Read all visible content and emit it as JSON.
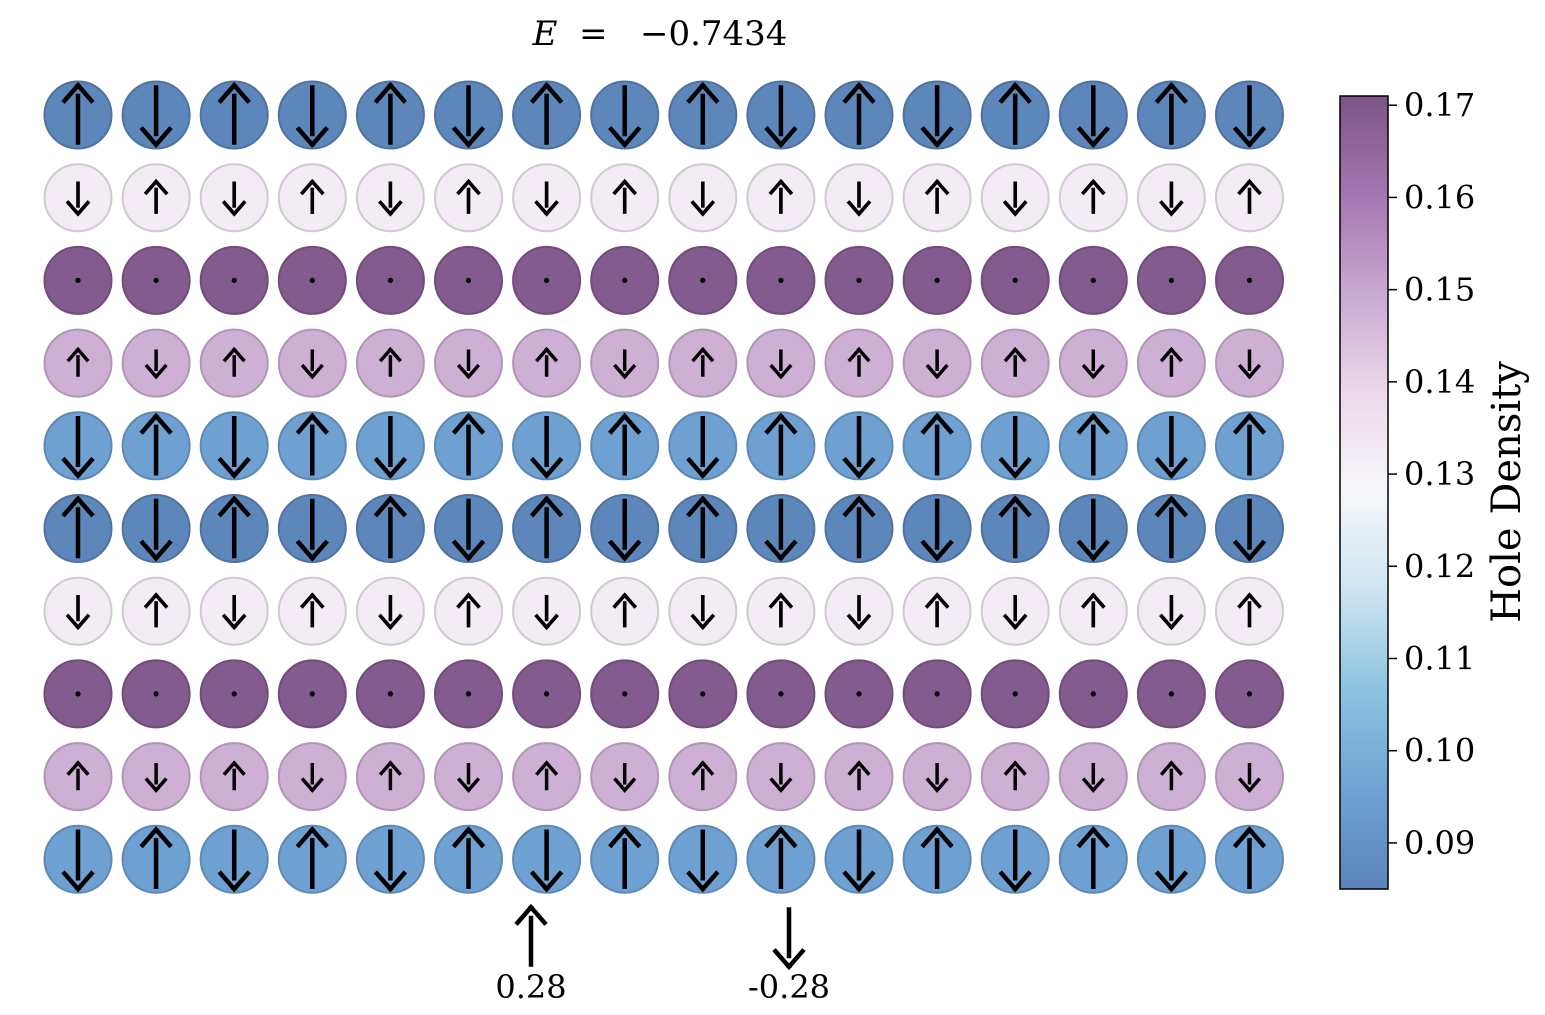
{
  "chart_data": {
    "type": "heatmap",
    "title": "E = −0.7434",
    "title_parts": {
      "symbol": "E",
      "equals": " =  ",
      "value": "−0.7434"
    },
    "grid": false,
    "rows": 10,
    "cols": 16,
    "colorbar": {
      "label": "Hole Density",
      "ticks": [
        "0.09",
        "0.10",
        "0.11",
        "0.12",
        "0.13",
        "0.14",
        "0.15",
        "0.16",
        "0.17"
      ],
      "tick_values": [
        0.09,
        0.1,
        0.11,
        0.12,
        0.13,
        0.14,
        0.15,
        0.16,
        0.17
      ],
      "range": [
        0.085,
        0.171
      ],
      "colormap": [
        "#5b84b8",
        "#6fa3d4",
        "#8bc3e0",
        "#cde4f0",
        "#f7f7fb",
        "#ecd9ea",
        "#c9a9d1",
        "#a576b1",
        "#7d5587"
      ]
    },
    "row_hole_density": [
      0.086,
      0.132,
      0.169,
      0.148,
      0.095,
      0.086,
      0.132,
      0.169,
      0.148,
      0.095
    ],
    "row_abs_spin": [
      0.28,
      0.12,
      0.0,
      0.09,
      0.28,
      0.28,
      0.12,
      0.0,
      0.09,
      0.28
    ],
    "row_first_spin_up": [
      true,
      false,
      null,
      true,
      false,
      true,
      false,
      null,
      true,
      false
    ],
    "legend": {
      "placement": "bottom-center",
      "items": [
        {
          "direction": "up",
          "value": "0.28"
        },
        {
          "direction": "down",
          "value": "-0.28"
        }
      ]
    }
  }
}
